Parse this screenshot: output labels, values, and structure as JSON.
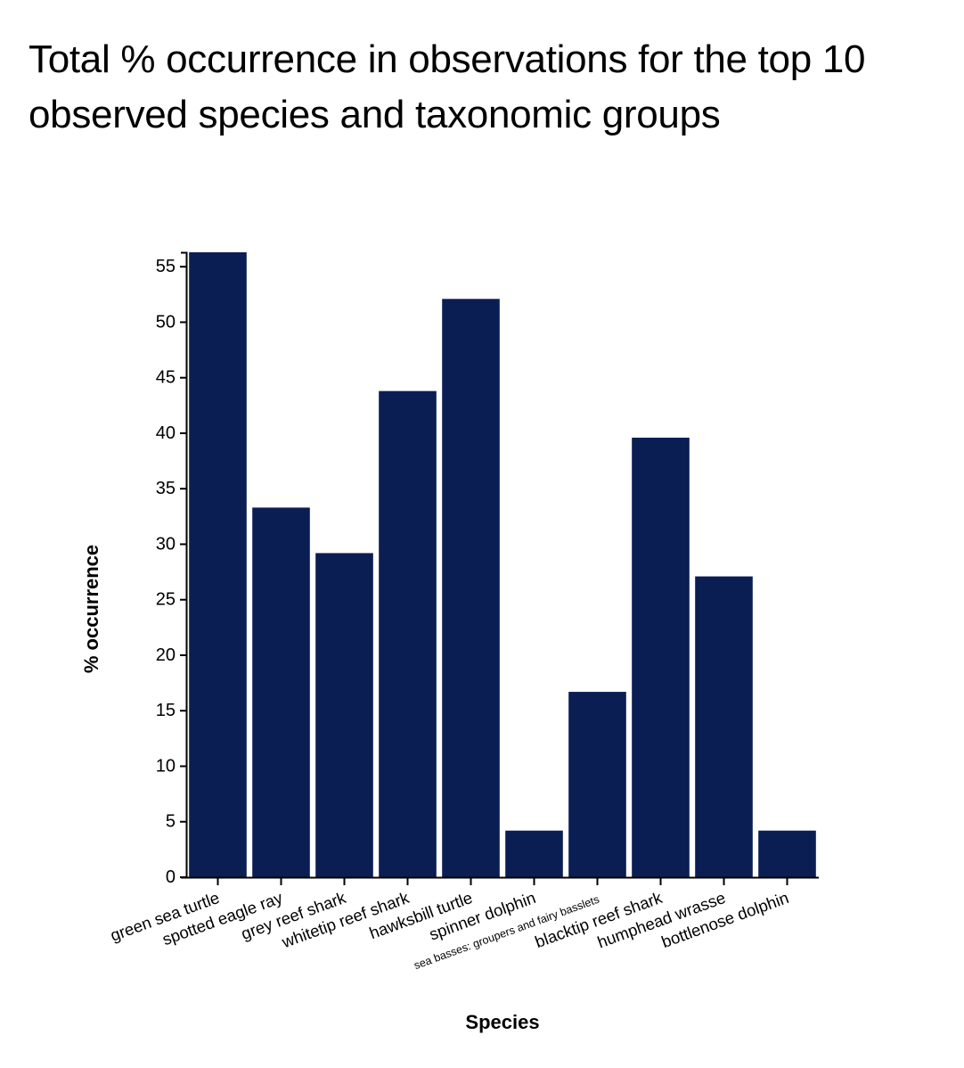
{
  "chart_data": {
    "type": "bar",
    "title": "Total % occurrence in observations for the top 10 observed species and taxonomic groups",
    "xlabel": "Species",
    "ylabel": "% occurrence",
    "categories": [
      "green sea turtle",
      "spotted eagle ray",
      "grey reef shark",
      "whitetip reef shark",
      "hawksbill turtle",
      "spinner dolphin",
      "sea basses: groupers and fairy basslets",
      "blacktip reef shark",
      "humphead wrasse",
      "bottlenose dolphin"
    ],
    "values": [
      56.3,
      33.3,
      29.2,
      43.8,
      52.1,
      4.2,
      16.7,
      39.6,
      27.1,
      4.2
    ],
    "ylim": [
      0,
      56.3
    ],
    "yticks": [
      "0",
      "5",
      "10",
      "15",
      "20",
      "25",
      "30",
      "35",
      "40",
      "45",
      "50",
      "55"
    ],
    "bar_color": "#0b1e53",
    "grid": false
  }
}
